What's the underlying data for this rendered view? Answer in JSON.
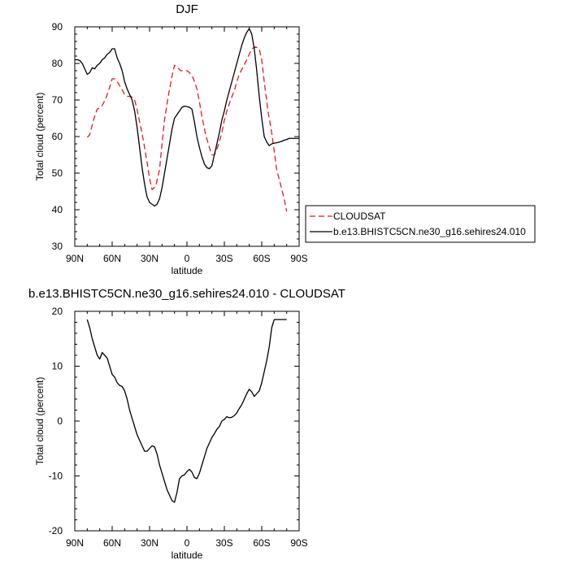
{
  "chart_data": [
    {
      "type": "line",
      "title": "DJF",
      "xlabel": "latitude",
      "ylabel": "Total cloud (percent)",
      "xlim": [
        90,
        -90
      ],
      "ylim": [
        30,
        90
      ],
      "x_ticks": [
        90,
        60,
        30,
        0,
        -30,
        -60,
        -90
      ],
      "x_tick_labels": [
        "90N",
        "60N",
        "30N",
        "0",
        "30S",
        "60S",
        "90S"
      ],
      "y_ticks": [
        30,
        40,
        50,
        60,
        70,
        80,
        90
      ],
      "y_tick_labels": [
        "30",
        "40",
        "50",
        "60",
        "70",
        "80",
        "90"
      ],
      "legend_position": "right of plot",
      "series": [
        {
          "name": "CLOUDSAT",
          "color": "#e31a1c",
          "dash": "dashed",
          "x": [
            80,
            78,
            75,
            72,
            70,
            68,
            65,
            62,
            60,
            58,
            55,
            52,
            50,
            48,
            45,
            42,
            40,
            38,
            35,
            32,
            30,
            28,
            25,
            22,
            20,
            18,
            15,
            12,
            10,
            8,
            5,
            2,
            0,
            -2,
            -5,
            -8,
            -10,
            -12,
            -15,
            -18,
            -20,
            -22,
            -25,
            -28,
            -30,
            -32,
            -35,
            -38,
            -40,
            -42,
            -45,
            -48,
            -50,
            -52,
            -55,
            -58,
            -60,
            -62,
            -65,
            -68,
            -70,
            -72,
            -75,
            -78,
            -80
          ],
          "values": [
            59.8,
            60.5,
            64.5,
            67.5,
            67.8,
            68.5,
            70.5,
            73.5,
            75.8,
            75.8,
            74.5,
            72.8,
            71.5,
            71,
            71,
            70,
            67.5,
            64,
            59,
            53,
            48.5,
            45.5,
            46.5,
            51,
            58,
            64.5,
            71,
            76.5,
            79.5,
            79,
            78,
            78,
            78,
            77.5,
            76,
            73,
            69.5,
            65.5,
            60.5,
            57,
            55,
            55,
            57.5,
            61,
            64.5,
            67,
            70,
            72.5,
            75,
            77,
            79,
            81,
            82.5,
            84,
            84.5,
            84,
            81,
            75,
            67,
            61,
            56,
            51,
            47,
            43,
            39.5
          ]
        },
        {
          "name": "b.e13.BHISTC5CN.ne30_g16.sehires24.010",
          "color": "#000000",
          "dash": "solid",
          "x": [
            90,
            88,
            86,
            84,
            82,
            80,
            78,
            76,
            74,
            72,
            70,
            68,
            66,
            64,
            62,
            60,
            58,
            56,
            54,
            52,
            50,
            48,
            46,
            44,
            42,
            40,
            38,
            36,
            34,
            32,
            30,
            28,
            26,
            24,
            22,
            20,
            18,
            16,
            14,
            12,
            10,
            8,
            6,
            4,
            2,
            0,
            -2,
            -4,
            -6,
            -8,
            -10,
            -12,
            -14,
            -16,
            -18,
            -20,
            -22,
            -24,
            -26,
            -28,
            -30,
            -32,
            -34,
            -36,
            -38,
            -40,
            -42,
            -44,
            -46,
            -48,
            -50,
            -52,
            -54,
            -56,
            -58,
            -60,
            -62,
            -64,
            -66,
            -68,
            -70,
            -72,
            -74,
            -76,
            -78,
            -80,
            -82,
            -84,
            -86,
            -88,
            -90
          ],
          "values": [
            81,
            81,
            80.8,
            80,
            78.5,
            77,
            77.5,
            78.8,
            78.5,
            79.5,
            80,
            81,
            81.5,
            82.5,
            83,
            84,
            84,
            81.5,
            80,
            78,
            75,
            73,
            71.5,
            70,
            67,
            62.5,
            57,
            51.5,
            47,
            43.5,
            42,
            41.5,
            41,
            41.5,
            43,
            46,
            50,
            54,
            58,
            62,
            65,
            66,
            67,
            68,
            68.3,
            68.2,
            68,
            67.5,
            64,
            60,
            57,
            54.5,
            52.5,
            51.5,
            51.2,
            52,
            55,
            58,
            61,
            64.5,
            67,
            70,
            72.5,
            75,
            77.5,
            80,
            82.5,
            85,
            87,
            88.5,
            89.5,
            88,
            84,
            78,
            71,
            65,
            60,
            58.5,
            57.5,
            58,
            58.2,
            58.3,
            58.5,
            58.7,
            59,
            59.2,
            59.5,
            59.5,
            59.5,
            59.5,
            59.5
          ]
        }
      ]
    },
    {
      "type": "line",
      "title": "b.e13.BHISTC5CN.ne30_g16.sehires24.010 - CLOUDSAT",
      "xlabel": "latitude",
      "ylabel": "Total cloud (percent)",
      "xlim": [
        90,
        -90
      ],
      "ylim": [
        -20,
        20
      ],
      "x_ticks": [
        90,
        60,
        30,
        0,
        -30,
        -60,
        -90
      ],
      "x_tick_labels": [
        "90N",
        "60N",
        "30N",
        "0",
        "30S",
        "60S",
        "90S"
      ],
      "y_ticks": [
        -20,
        -10,
        0,
        10,
        20
      ],
      "y_tick_labels": [
        "-20",
        "-10",
        "0",
        "10",
        "20"
      ],
      "series": [
        {
          "color": "#000000",
          "dash": "solid",
          "x": [
            80,
            78,
            76,
            74,
            72,
            70,
            68,
            66,
            64,
            62,
            60,
            58,
            56,
            54,
            52,
            50,
            48,
            46,
            44,
            42,
            40,
            38,
            36,
            34,
            32,
            30,
            28,
            26,
            24,
            22,
            20,
            18,
            16,
            14,
            12,
            10,
            8,
            6,
            4,
            2,
            0,
            -2,
            -4,
            -6,
            -8,
            -10,
            -12,
            -14,
            -16,
            -18,
            -20,
            -22,
            -24,
            -26,
            -28,
            -30,
            -32,
            -34,
            -36,
            -38,
            -40,
            -42,
            -44,
            -46,
            -48,
            -50,
            -52,
            -54,
            -56,
            -58,
            -60,
            -62,
            -64,
            -66,
            -68,
            -70,
            -72,
            -74,
            -76,
            -78,
            -80
          ],
          "values": [
            18.5,
            17,
            15,
            13.5,
            12,
            11.3,
            12.5,
            12,
            11.5,
            10,
            8.5,
            8,
            7,
            6.5,
            6.3,
            5.5,
            4,
            2,
            0.5,
            -1,
            -2.5,
            -3.5,
            -4.5,
            -5.5,
            -5.5,
            -5,
            -4.5,
            -4.7,
            -6,
            -8,
            -9.5,
            -11,
            -12.5,
            -13.5,
            -14.5,
            -14.8,
            -13,
            -10.5,
            -10,
            -9.8,
            -9.2,
            -8.8,
            -9.3,
            -10.3,
            -10.5,
            -9.5,
            -8,
            -6.5,
            -5,
            -4,
            -3,
            -2.3,
            -1.5,
            -1,
            0,
            0.3,
            0.8,
            0.6,
            0.7,
            1,
            1.5,
            2.3,
            3,
            4,
            5,
            5.8,
            5.3,
            4.5,
            5,
            5.5,
            7,
            9,
            11,
            13.5,
            17,
            18.5,
            18.5,
            18.5,
            18.5,
            18.5,
            18.5
          ]
        }
      ]
    }
  ]
}
